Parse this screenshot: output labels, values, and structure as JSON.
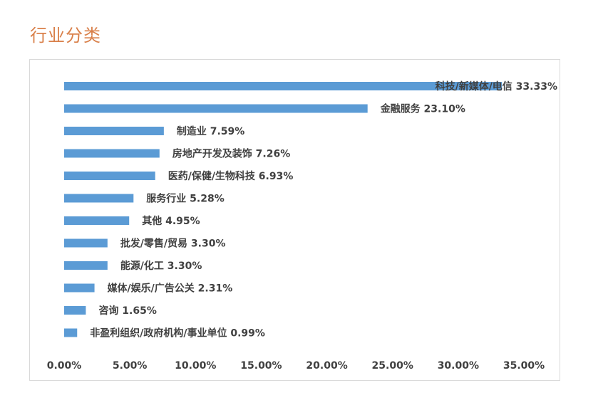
{
  "page": {
    "section_title": "行业分类"
  },
  "chart_data": {
    "type": "bar",
    "orientation": "horizontal",
    "categories": [
      "科技/新媒体/电信",
      "金融服务",
      "制造业",
      "房地产开发及装饰",
      "医药/保健/生物科技",
      "服务行业",
      "其他",
      "批发/零售/贸易",
      "能源/化工",
      "媒体/娱乐/广告公关",
      "咨询",
      "非盈利组织/政府机构/事业单位"
    ],
    "values": [
      33.33,
      23.1,
      7.59,
      7.26,
      6.93,
      5.28,
      4.95,
      3.3,
      3.3,
      2.31,
      1.65,
      0.99
    ],
    "value_labels": [
      "33.33%",
      "23.10%",
      "7.59%",
      "7.26%",
      "6.93%",
      "5.28%",
      "4.95%",
      "3.30%",
      "3.30%",
      "2.31%",
      "1.65%",
      "0.99%"
    ],
    "x_ticks": [
      "0.00%",
      "5.00%",
      "10.00%",
      "15.00%",
      "20.00%",
      "25.00%",
      "30.00%",
      "35.00%"
    ],
    "xlim": [
      0,
      35
    ],
    "bar_color": "#5b9bd5",
    "grid": false,
    "legend": "none"
  }
}
